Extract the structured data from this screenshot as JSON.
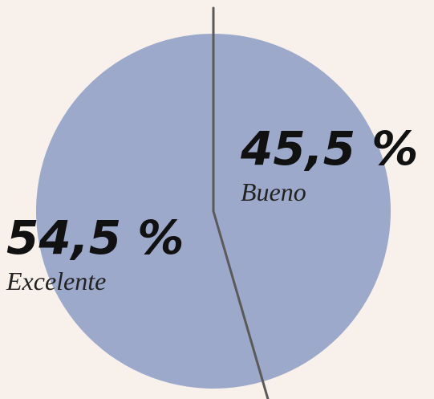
{
  "chart_data": {
    "type": "pie",
    "categories": [
      "Bueno",
      "Excelente"
    ],
    "values": [
      45.5,
      54.5
    ],
    "value_labels": [
      "45,5 %",
      "54,5 %"
    ],
    "colors": [
      "#9ca9ca",
      "#9ca9ca"
    ]
  }
}
